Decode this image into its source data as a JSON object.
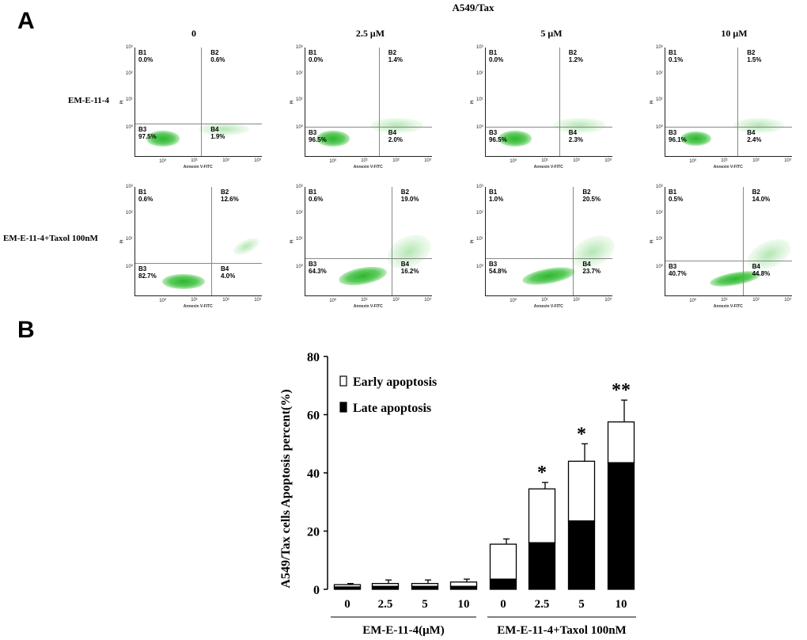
{
  "panel_a": {
    "letter": "A",
    "title": "A549/Tax",
    "column_headers": [
      "0",
      "2.5 μM",
      "5 μM",
      "10 μM"
    ],
    "row_labels": [
      "EM-E-11-4",
      "EM-E-11-4+Taxol 100nM"
    ],
    "axis_x_label": "Annexin V-FITC",
    "axis_y_label": "PI",
    "tick_labels": [
      "10⁰",
      "10¹",
      "10²",
      "10³"
    ],
    "plots": [
      [
        {
          "B1": "B1\n0.0%",
          "B2": "B2\n0.6%",
          "B3": "B3\n97.5%",
          "B4": "B4\n1.9%"
        },
        {
          "B1": "B1\n0.0%",
          "B2": "B2\n1.4%",
          "B3": "B3\n96.5%",
          "B4": "B4\n2.0%"
        },
        {
          "B1": "B1\n0.0%",
          "B2": "B2\n1.2%",
          "B3": "B3\n96.5%",
          "B4": "B4\n2.3%"
        },
        {
          "B1": "B1\n0.1%",
          "B2": "B2\n1.5%",
          "B3": "B3\n96.1%",
          "B4": "B4\n2.4%"
        }
      ],
      [
        {
          "B1": "B1\n0.6%",
          "B2": "B2\n12.6%",
          "B3": "B3\n82.7%",
          "B4": "B4\n4.0%"
        },
        {
          "B1": "B1\n0.6%",
          "B2": "B2\n19.0%",
          "B3": "B3\n64.3%",
          "B4": "B4\n16.2%"
        },
        {
          "B1": "B1\n1.0%",
          "B2": "B2\n20.5%",
          "B3": "B3\n54.8%",
          "B4": "B4\n23.7%"
        },
        {
          "B1": "B1\n0.5%",
          "B2": "B2\n14.0%",
          "B3": "B3\n40.7%",
          "B4": "B4\n44.8%"
        }
      ]
    ]
  },
  "panel_b": {
    "letter": "B",
    "legend": {
      "early": "Early apoptosis",
      "late": "Late apoptosis"
    },
    "group_labels": [
      "EM-E-11-4(μM)",
      "EM-E-11-4+Taxol 100nM"
    ]
  },
  "chart_data": {
    "type": "bar",
    "stacked": true,
    "title": "",
    "ylabel": "A549/Tax cells Apoptosis percent(%)",
    "xlabel": "",
    "ylim": [
      0,
      80
    ],
    "yticks": [
      0,
      20,
      40,
      60,
      80
    ],
    "categories": [
      "0",
      "2.5",
      "5",
      "10",
      "0",
      "2.5",
      "5",
      "10"
    ],
    "series": [
      {
        "name": "Late apoptosis",
        "color": "#000000",
        "values": [
          0.8,
          1.0,
          1.0,
          1.0,
          3.5,
          16,
          23.5,
          43.5
        ]
      },
      {
        "name": "Early apoptosis",
        "color": "#ffffff",
        "values": [
          0.8,
          1.0,
          1.0,
          1.5,
          12,
          18.5,
          20.5,
          14
        ]
      }
    ],
    "error_bars": [
      0.4,
      1.2,
      1.2,
      1.0,
      1.8,
      2.2,
      6.0,
      7.5
    ],
    "significance": [
      "",
      "",
      "",
      "",
      "",
      "*",
      "*",
      "**"
    ]
  }
}
